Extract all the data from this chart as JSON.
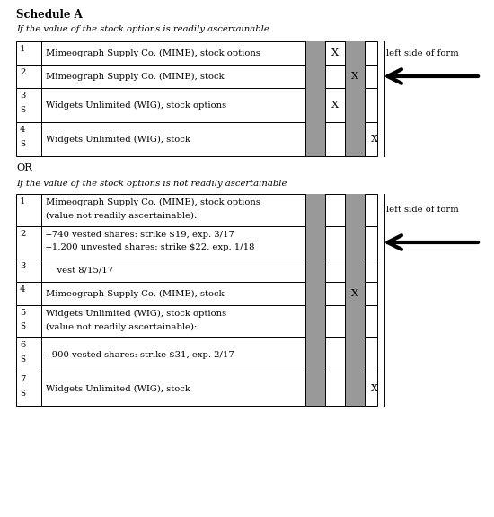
{
  "title": "Schedule A",
  "subtitle1": "If the value of the stock options is readily ascertainable",
  "subtitle2": "If the value of the stock options is not readily ascertainable",
  "or_text": "OR",
  "left_side_text": "left side of form",
  "table1_rows": [
    {
      "num": "1",
      "sub": "",
      "lines": [
        "Mimeograph Supply Co. (MIME), stock options"
      ],
      "marks": [
        false,
        true,
        false,
        false
      ]
    },
    {
      "num": "2",
      "sub": "",
      "lines": [
        "Mimeograph Supply Co. (MIME), stock"
      ],
      "marks": [
        false,
        false,
        true,
        false
      ]
    },
    {
      "num": "3",
      "sub": "S",
      "lines": [
        "Widgets Unlimited (WIG), stock options"
      ],
      "marks": [
        false,
        true,
        false,
        false
      ]
    },
    {
      "num": "4",
      "sub": "S",
      "lines": [
        "Widgets Unlimited (WIG), stock"
      ],
      "marks": [
        false,
        false,
        false,
        true
      ]
    }
  ],
  "table2_rows": [
    {
      "num": "1",
      "sub": "",
      "lines": [
        "Mimeograph Supply Co. (MIME), stock options",
        "(value not readily ascertainable):"
      ],
      "marks": [
        false,
        false,
        false,
        false
      ]
    },
    {
      "num": "2",
      "sub": "",
      "lines": [
        "--740 vested shares: strike $19, exp. 3/17",
        "--1,200 unvested shares: strike $22, exp. 1/18"
      ],
      "marks": [
        false,
        false,
        false,
        false
      ]
    },
    {
      "num": "3",
      "sub": "",
      "lines": [
        "    vest 8/15/17"
      ],
      "marks": [
        false,
        false,
        false,
        false
      ]
    },
    {
      "num": "4",
      "sub": "",
      "lines": [
        "Mimeograph Supply Co. (MIME), stock"
      ],
      "marks": [
        false,
        false,
        true,
        false
      ]
    },
    {
      "num": "5",
      "sub": "S",
      "lines": [
        "Widgets Unlimited (WIG), stock options",
        "(value not readily ascertainable):"
      ],
      "marks": [
        false,
        false,
        false,
        false
      ]
    },
    {
      "num": "6",
      "sub": "S",
      "lines": [
        "--900 vested shares: strike $31, exp. 2/17"
      ],
      "marks": [
        false,
        false,
        false,
        false
      ]
    },
    {
      "num": "7",
      "sub": "S",
      "lines": [
        "Widgets Unlimited (WIG), stock"
      ],
      "marks": [
        false,
        false,
        false,
        true
      ]
    }
  ],
  "shaded_color": "#999999",
  "bg_color": "#ffffff",
  "border_color": "#000000",
  "fs_title": 8.5,
  "fs_body": 7.2,
  "fs_italic": 7.2
}
